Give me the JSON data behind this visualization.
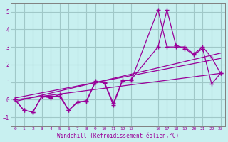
{
  "background_color": "#c8f0f0",
  "grid_color": "#a0c8c8",
  "line_color": "#990099",
  "marker_color": "#990099",
  "xlabel": "Windchill (Refroidissement éolien,°C)",
  "ylim": [
    -1.5,
    5.5
  ],
  "xlim": [
    -0.5,
    23.5
  ],
  "yticks": [
    -1,
    0,
    1,
    2,
    3,
    4,
    5
  ],
  "xtick_positions": [
    0,
    1,
    2,
    3,
    4,
    5,
    6,
    7,
    8,
    9,
    10,
    11,
    12,
    13,
    16,
    17,
    18,
    19,
    20,
    21,
    22,
    23
  ],
  "xtick_labels": [
    "0",
    "1",
    "2",
    "3",
    "4",
    "5",
    "6",
    "7",
    "8",
    "9",
    "10",
    "11",
    "12",
    "13",
    "16",
    "17",
    "18",
    "19",
    "20",
    "21",
    "22",
    "23"
  ],
  "series1_x": [
    0,
    1,
    2,
    3,
    4,
    5,
    6,
    7,
    8,
    9,
    10,
    11,
    12,
    13,
    16,
    17,
    18,
    19,
    20,
    21,
    22,
    23
  ],
  "series1_y": [
    0.0,
    -0.6,
    -0.7,
    0.2,
    0.2,
    0.2,
    -0.6,
    -0.1,
    -0.1,
    1.0,
    1.0,
    -0.2,
    1.1,
    1.1,
    5.1,
    3.0,
    3.0,
    3.0,
    2.6,
    3.0,
    2.4,
    1.5
  ],
  "series2_x": [
    0,
    1,
    2,
    3,
    4,
    5,
    6,
    7,
    8,
    9,
    10,
    11,
    12,
    13,
    16,
    17,
    18,
    19,
    20,
    21,
    22,
    23
  ],
  "series2_y": [
    0.0,
    -0.6,
    -0.7,
    0.2,
    0.1,
    0.3,
    -0.6,
    -0.15,
    -0.05,
    1.05,
    0.95,
    -0.3,
    1.05,
    1.15,
    3.0,
    5.1,
    3.1,
    2.9,
    2.55,
    2.9,
    0.9,
    1.5
  ],
  "series3_x": [
    0,
    23
  ],
  "series3_y": [
    0.0,
    1.5
  ],
  "series4_x": [
    0,
    23
  ],
  "series4_y": [
    -0.1,
    2.65
  ],
  "series5_x": [
    0,
    23
  ],
  "series5_y": [
    0.1,
    2.35
  ]
}
